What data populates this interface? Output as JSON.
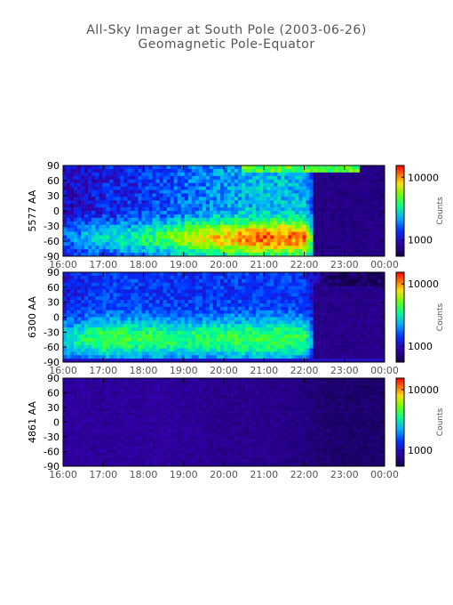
{
  "title": "All-Sky Imager at South Pole (2003-06-26)",
  "subtitle": "Geomagnetic Pole-Equator",
  "chart_data": [
    {
      "type": "heatmap",
      "ylabel": "5577 AA",
      "x_ticks": [
        "16:00",
        "17:00",
        "18:00",
        "19:00",
        "20:00",
        "21:00",
        "22:00",
        "23:00",
        "00:00"
      ],
      "y_ticks": [
        90,
        60,
        30,
        0,
        -30,
        -60,
        -90
      ],
      "ylim": [
        -90,
        90
      ],
      "colorbar": {
        "label": "Counts",
        "ticks": [
          "10000",
          "1000"
        ],
        "scale": "log"
      },
      "description_profile": [
        {
          "t": "16:00",
          "level": 0.3
        },
        {
          "t": "17:00",
          "level": 0.42
        },
        {
          "t": "18:00",
          "level": 0.48
        },
        {
          "t": "19:00",
          "level": 0.62
        },
        {
          "t": "20:00",
          "level": 0.72
        },
        {
          "t": "21:00",
          "level": 0.8
        },
        {
          "t": "22:00",
          "level": 0.78
        },
        {
          "t": "22:30",
          "level": 0.1
        },
        {
          "t": "23:00",
          "level": 0.05
        },
        {
          "t": "00:00",
          "level": 0.05
        }
      ]
    },
    {
      "type": "heatmap",
      "ylabel": "6300 AA",
      "x_ticks": [
        "16:00",
        "17:00",
        "18:00",
        "19:00",
        "20:00",
        "21:00",
        "22:00",
        "23:00",
        "00:00"
      ],
      "y_ticks": [
        90,
        60,
        30,
        0,
        -30,
        -60,
        -90
      ],
      "ylim": [
        -90,
        90
      ],
      "colorbar": {
        "label": "Counts",
        "ticks": [
          "10000",
          "1000"
        ],
        "scale": "log"
      },
      "description_profile": [
        {
          "t": "16:00",
          "level": 0.4
        },
        {
          "t": "17:00",
          "level": 0.52
        },
        {
          "t": "18:00",
          "level": 0.5
        },
        {
          "t": "19:00",
          "level": 0.48
        },
        {
          "t": "20:00",
          "level": 0.5
        },
        {
          "t": "21:00",
          "level": 0.52
        },
        {
          "t": "22:00",
          "level": 0.5
        },
        {
          "t": "22:30",
          "level": 0.1
        },
        {
          "t": "23:00",
          "level": 0.05
        },
        {
          "t": "00:00",
          "level": 0.05
        }
      ]
    },
    {
      "type": "heatmap",
      "ylabel": "4861 AA",
      "x_ticks": [
        "16:00",
        "17:00",
        "18:00",
        "19:00",
        "20:00",
        "21:00",
        "22:00",
        "23:00",
        "00:00"
      ],
      "y_ticks": [
        90,
        60,
        30,
        0,
        -30,
        -60,
        -90
      ],
      "ylim": [
        -90,
        90
      ],
      "colorbar": {
        "label": "Counts",
        "ticks": [
          "10000",
          "1000"
        ],
        "scale": "log"
      },
      "description_profile": [
        {
          "t": "16:00",
          "level": 0.12
        },
        {
          "t": "17:00",
          "level": 0.12
        },
        {
          "t": "18:00",
          "level": 0.12
        },
        {
          "t": "19:00",
          "level": 0.12
        },
        {
          "t": "20:00",
          "level": 0.1
        },
        {
          "t": "21:00",
          "level": 0.1
        },
        {
          "t": "22:00",
          "level": 0.08
        },
        {
          "t": "22:30",
          "level": 0.05
        },
        {
          "t": "23:00",
          "level": 0.05
        },
        {
          "t": "00:00",
          "level": 0.05
        }
      ]
    }
  ]
}
